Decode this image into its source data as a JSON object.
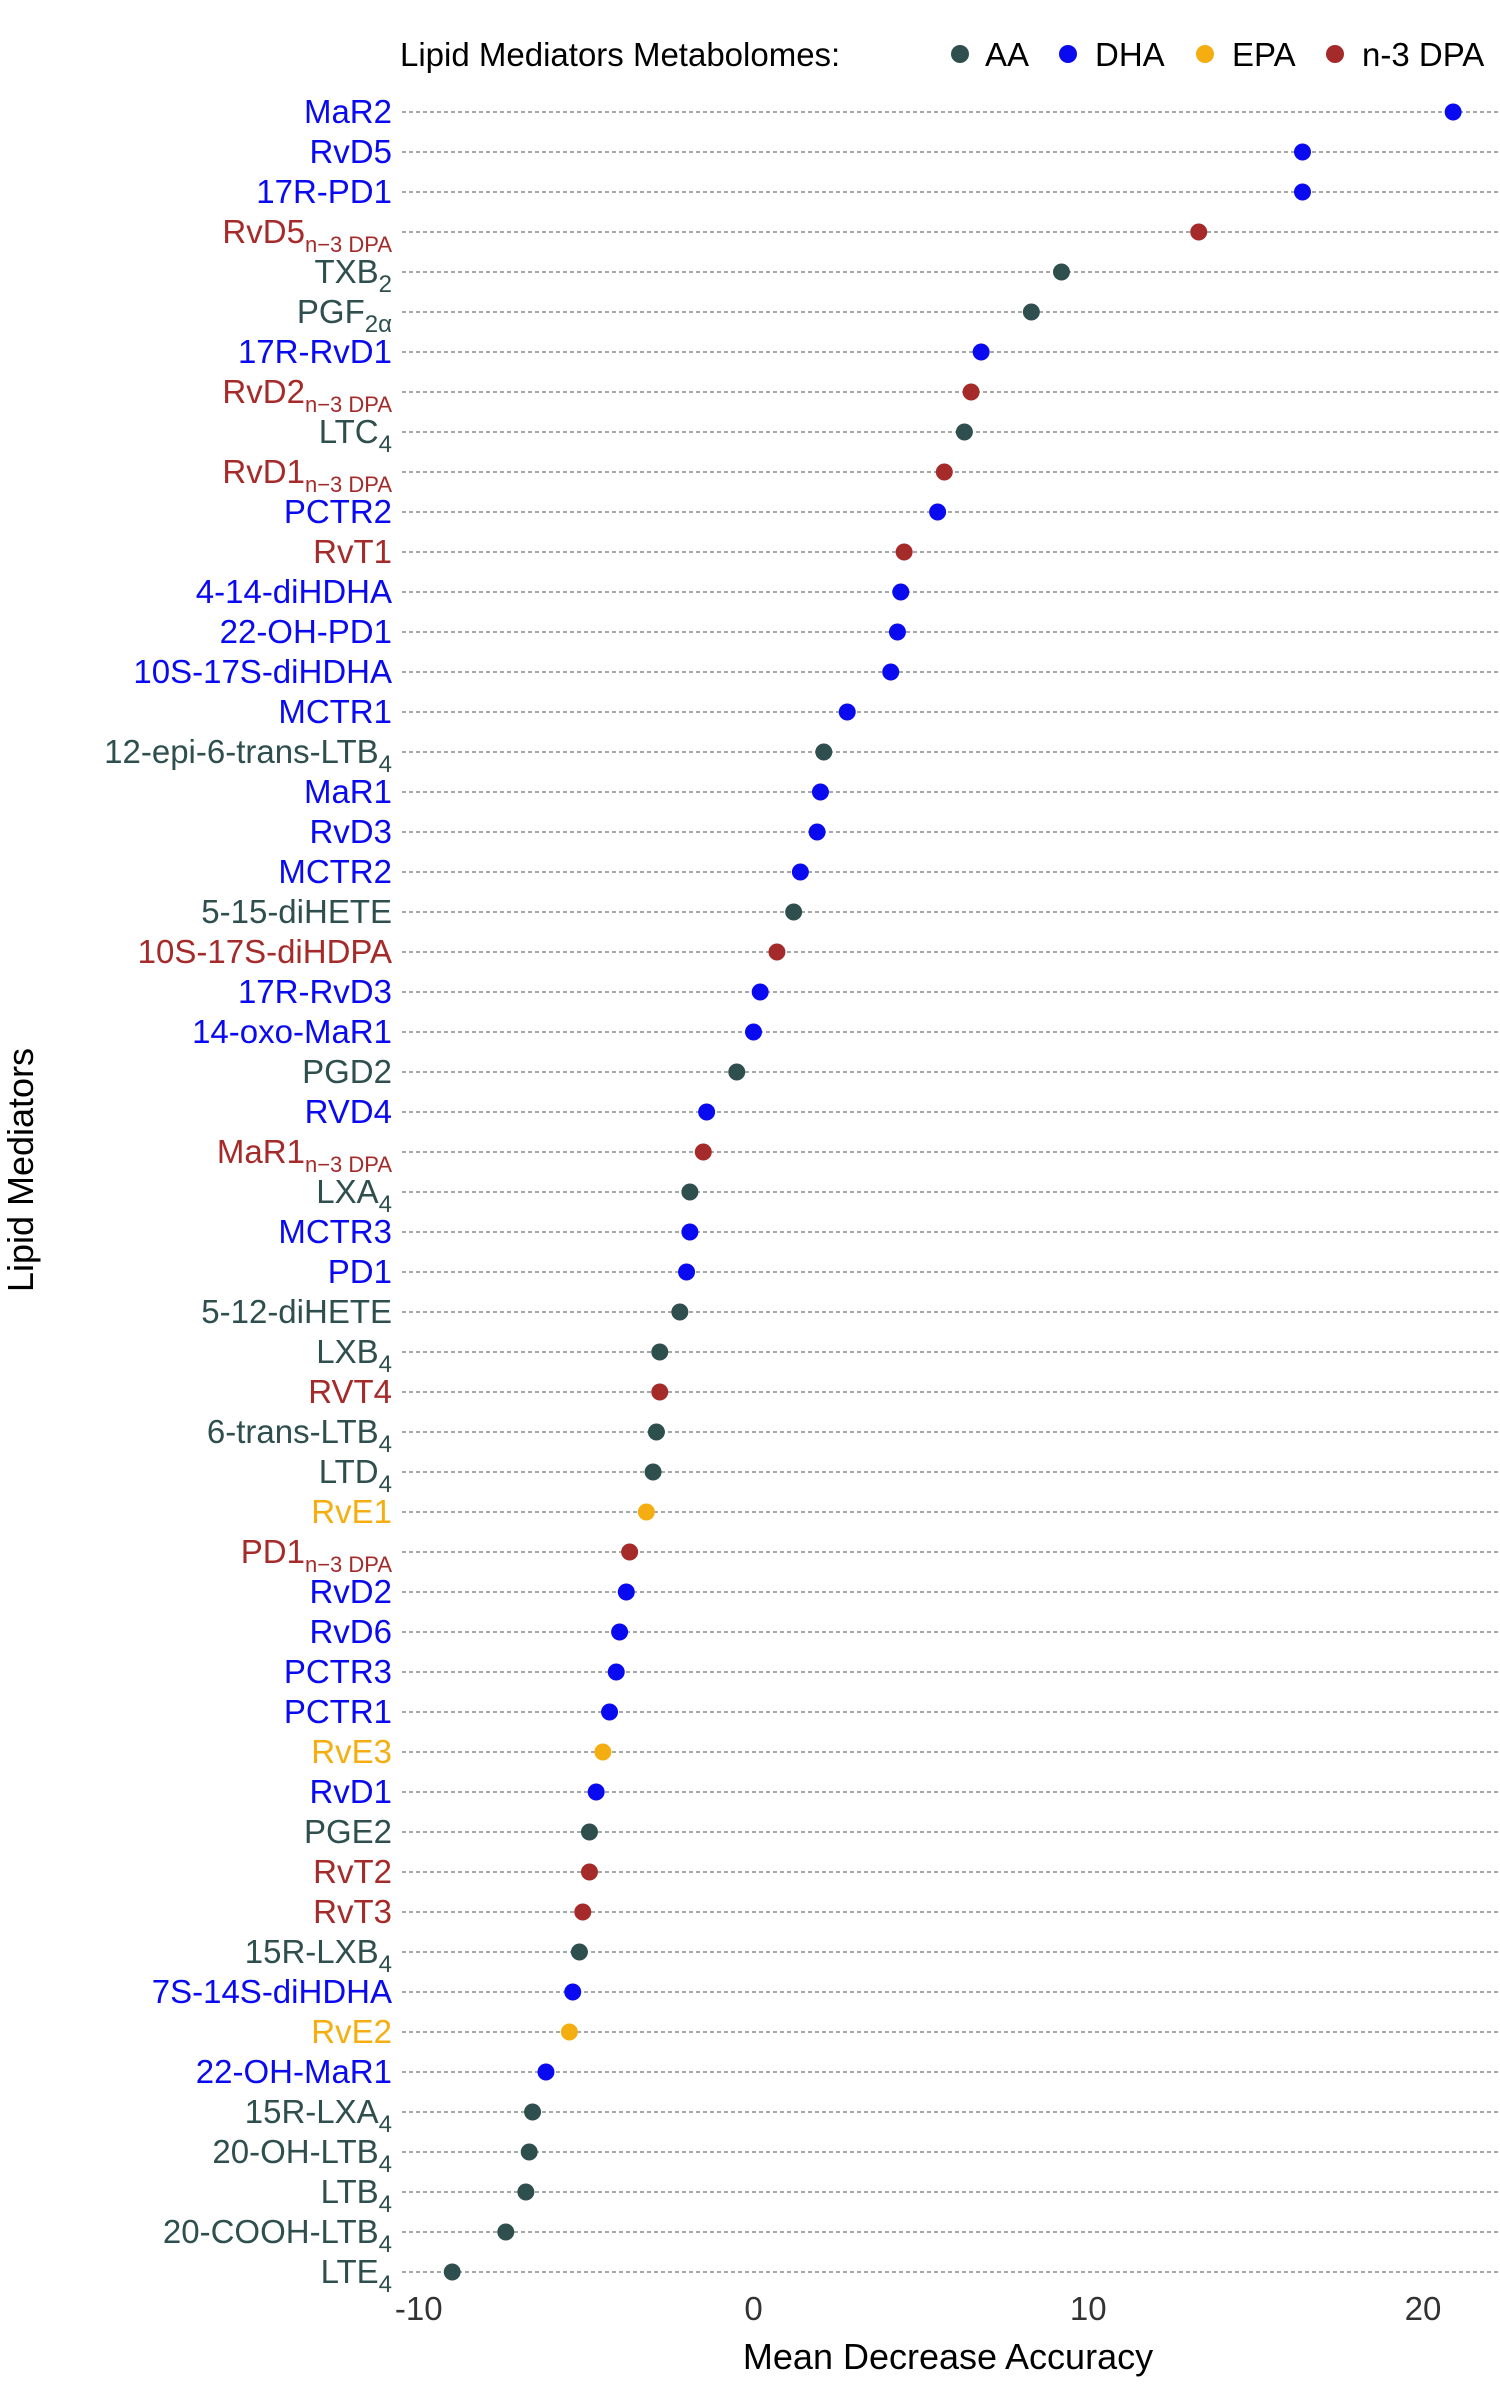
{
  "chart_data": {
    "type": "scatter",
    "orientation": "horizontal-dot-plot",
    "xlabel": "Mean Decrease Accuracy",
    "ylabel": "Lipid Mediators",
    "xlim": [
      -10.5,
      22.3
    ],
    "xticks": [
      -10,
      0,
      10,
      20
    ],
    "grid": "horizontal dashed line per category",
    "legend": {
      "title": "Lipid Mediators Metabolomes:",
      "position": "top",
      "entries": [
        {
          "name": "AA",
          "color": "#2f4f4f"
        },
        {
          "name": "DHA",
          "color": "#0a0af0"
        },
        {
          "name": "EPA",
          "color": "#f5ae12"
        },
        {
          "name": "n-3 DPA",
          "color": "#a52a2a"
        }
      ]
    },
    "colors": {
      "AA": "#2f4f4f",
      "DHA": "#0a0af0",
      "EPA": "#f5ae12",
      "n-3 DPA": "#a52a2a"
    },
    "points": [
      {
        "label": "MaR2",
        "sub": "",
        "group": "DHA",
        "value": 20.9
      },
      {
        "label": "RvD5",
        "sub": "",
        "group": "DHA",
        "value": 16.4
      },
      {
        "label": "17R-PD1",
        "sub": "",
        "group": "DHA",
        "value": 16.4
      },
      {
        "label": "RvD5",
        "sub": "n−3 DPA",
        "group": "n-3 DPA",
        "value": 13.3
      },
      {
        "label": "TXB",
        "sub": "2",
        "group": "AA",
        "value": 9.2
      },
      {
        "label": "PGF",
        "sub": "2α",
        "group": "AA",
        "value": 8.3
      },
      {
        "label": "17R-RvD1",
        "sub": "",
        "group": "DHA",
        "value": 6.8
      },
      {
        "label": "RvD2",
        "sub": "n−3 DPA",
        "group": "n-3 DPA",
        "value": 6.5
      },
      {
        "label": "LTC",
        "sub": "4",
        "group": "AA",
        "value": 6.3
      },
      {
        "label": "RvD1",
        "sub": "n−3 DPA",
        "group": "n-3 DPA",
        "value": 5.7
      },
      {
        "label": "PCTR2",
        "sub": "",
        "group": "DHA",
        "value": 5.5
      },
      {
        "label": "RvT1",
        "sub": "",
        "group": "n-3 DPA",
        "value": 4.5
      },
      {
        "label": "4-14-diHDHA",
        "sub": "",
        "group": "DHA",
        "value": 4.4
      },
      {
        "label": "22-OH-PD1",
        "sub": "",
        "group": "DHA",
        "value": 4.3
      },
      {
        "label": "10S-17S-diHDHA",
        "sub": "",
        "group": "DHA",
        "value": 4.1
      },
      {
        "label": "MCTR1",
        "sub": "",
        "group": "DHA",
        "value": 2.8
      },
      {
        "label": "12-epi-6-trans-LTB",
        "sub": "4",
        "group": "AA",
        "value": 2.1
      },
      {
        "label": "MaR1",
        "sub": "",
        "group": "DHA",
        "value": 2.0
      },
      {
        "label": "RvD3",
        "sub": "",
        "group": "DHA",
        "value": 1.9
      },
      {
        "label": "MCTR2",
        "sub": "",
        "group": "DHA",
        "value": 1.4
      },
      {
        "label": "5-15-diHETE",
        "sub": "",
        "group": "AA",
        "value": 1.2
      },
      {
        "label": "10S-17S-diHDPA",
        "sub": "",
        "group": "n-3 DPA",
        "value": 0.7
      },
      {
        "label": "17R-RvD3",
        "sub": "",
        "group": "DHA",
        "value": 0.2
      },
      {
        "label": "14-oxo-MaR1",
        "sub": "",
        "group": "DHA",
        "value": 0.0
      },
      {
        "label": "PGD2",
        "sub": "",
        "group": "AA",
        "value": -0.5
      },
      {
        "label": "RVD4",
        "sub": "",
        "group": "DHA",
        "value": -1.4
      },
      {
        "label": "MaR1",
        "sub": "n−3 DPA",
        "group": "n-3 DPA",
        "value": -1.5
      },
      {
        "label": "LXA",
        "sub": "4",
        "group": "AA",
        "value": -1.9
      },
      {
        "label": "MCTR3",
        "sub": "",
        "group": "DHA",
        "value": -1.9
      },
      {
        "label": "PD1",
        "sub": "",
        "group": "DHA",
        "value": -2.0
      },
      {
        "label": "5-12-diHETE",
        "sub": "",
        "group": "AA",
        "value": -2.2
      },
      {
        "label": "LXB",
        "sub": "4",
        "group": "AA",
        "value": -2.8
      },
      {
        "label": "RVT4",
        "sub": "",
        "group": "n-3 DPA",
        "value": -2.8
      },
      {
        "label": "6-trans-LTB",
        "sub": "4",
        "group": "AA",
        "value": -2.9
      },
      {
        "label": "LTD",
        "sub": "4",
        "group": "AA",
        "value": -3.0
      },
      {
        "label": "RvE1",
        "sub": "",
        "group": "EPA",
        "value": -3.2
      },
      {
        "label": "PD1",
        "sub": "n−3 DPA",
        "group": "n-3 DPA",
        "value": -3.7
      },
      {
        "label": "RvD2",
        "sub": "",
        "group": "DHA",
        "value": -3.8
      },
      {
        "label": "RvD6",
        "sub": "",
        "group": "DHA",
        "value": -4.0
      },
      {
        "label": "PCTR3",
        "sub": "",
        "group": "DHA",
        "value": -4.1
      },
      {
        "label": "PCTR1",
        "sub": "",
        "group": "DHA",
        "value": -4.3
      },
      {
        "label": "RvE3",
        "sub": "",
        "group": "EPA",
        "value": -4.5
      },
      {
        "label": "RvD1",
        "sub": "",
        "group": "DHA",
        "value": -4.7
      },
      {
        "label": "PGE2",
        "sub": "",
        "group": "AA",
        "value": -4.9
      },
      {
        "label": "RvT2",
        "sub": "",
        "group": "n-3 DPA",
        "value": -4.9
      },
      {
        "label": "RvT3",
        "sub": "",
        "group": "n-3 DPA",
        "value": -5.1
      },
      {
        "label": "15R-LXB",
        "sub": "4",
        "group": "AA",
        "value": -5.2
      },
      {
        "label": "7S-14S-diHDHA",
        "sub": "",
        "group": "DHA",
        "value": -5.4
      },
      {
        "label": "RvE2",
        "sub": "",
        "group": "EPA",
        "value": -5.5
      },
      {
        "label": "22-OH-MaR1",
        "sub": "",
        "group": "DHA",
        "value": -6.2
      },
      {
        "label": "15R-LXA",
        "sub": "4",
        "group": "AA",
        "value": -6.6
      },
      {
        "label": "20-OH-LTB",
        "sub": "4",
        "group": "AA",
        "value": -6.7
      },
      {
        "label": "LTB",
        "sub": "4",
        "group": "AA",
        "value": -6.8
      },
      {
        "label": "20-COOH-LTB",
        "sub": "4",
        "group": "AA",
        "value": -7.4
      },
      {
        "label": "LTE",
        "sub": "4",
        "group": "AA",
        "value": -9.0
      }
    ]
  }
}
